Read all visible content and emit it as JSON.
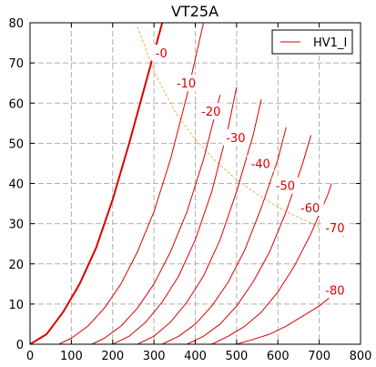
{
  "chart_data": {
    "type": "line",
    "title": "VT25A",
    "xlabel": "",
    "ylabel": "",
    "xlim": [
      0,
      800
    ],
    "ylim": [
      0,
      80
    ],
    "x_ticks": [
      "0",
      "100",
      "200",
      "300",
      "400",
      "500",
      "600",
      "700",
      "800"
    ],
    "y_ticks": [
      "0",
      "10",
      "20",
      "30",
      "40",
      "50",
      "60",
      "70",
      "80"
    ],
    "grid": true,
    "legend": {
      "position": "top-right",
      "entries": [
        "HV1_I"
      ]
    },
    "colors": {
      "curves": "#dd0000",
      "dissipation": "#f0b050",
      "axis": "#000000",
      "grid": "#b0b0b0"
    },
    "series": [
      {
        "label": "-0",
        "x": [
          0,
          40,
          80,
          120,
          160,
          200,
          240,
          280,
          320
        ],
        "y": [
          0,
          2.5,
          8,
          15,
          24,
          36,
          50,
          65,
          80
        ]
      },
      {
        "label": "-10",
        "x": [
          70,
          100,
          140,
          180,
          220,
          260,
          300,
          340,
          380,
          420
        ],
        "y": [
          0,
          1.5,
          4.5,
          9,
          15,
          23,
          33,
          46,
          62,
          80
        ]
      },
      {
        "label": "-20",
        "x": [
          150,
          180,
          220,
          260,
          300,
          340,
          380,
          420,
          460
        ],
        "y": [
          0,
          1.5,
          4.5,
          9,
          15,
          23,
          33,
          46,
          62
        ]
      },
      {
        "label": "-30",
        "x": [
          200,
          240,
          280,
          320,
          360,
          400,
          440,
          480,
          500
        ],
        "y": [
          0,
          2,
          5.5,
          10.5,
          17,
          26,
          38,
          54,
          64
        ]
      },
      {
        "label": "-40",
        "x": [
          260,
          300,
          340,
          380,
          420,
          460,
          500,
          540,
          560
        ],
        "y": [
          0,
          2,
          5.5,
          10.5,
          17,
          26,
          38,
          52,
          61
        ]
      },
      {
        "label": "-50",
        "x": [
          320,
          360,
          400,
          440,
          480,
          520,
          560,
          600,
          620
        ],
        "y": [
          0,
          2,
          5,
          9.5,
          15.5,
          23.5,
          34,
          46,
          54
        ]
      },
      {
        "label": "-60",
        "x": [
          380,
          420,
          460,
          500,
          540,
          580,
          620,
          660,
          680
        ],
        "y": [
          0,
          2,
          5,
          9.5,
          15.5,
          23,
          33,
          45,
          52
        ]
      },
      {
        "label": "-70",
        "x": [
          440,
          480,
          520,
          560,
          600,
          640,
          680,
          720,
          730
        ],
        "y": [
          0,
          2,
          4.5,
          8,
          13,
          19.5,
          27.5,
          37,
          40
        ]
      },
      {
        "label": "-80",
        "x": [
          500,
          540,
          580,
          620,
          660,
          700,
          730
        ],
        "y": [
          0,
          1.2,
          2.5,
          4.5,
          7,
          9.5,
          12
        ]
      }
    ],
    "dissipation_curve": {
      "x": [
        260,
        300,
        350,
        400,
        450,
        500,
        550,
        600,
        650,
        700,
        760
      ],
      "y": [
        79,
        68,
        58,
        51,
        45.5,
        41,
        37.3,
        34.1,
        31.5,
        29.3,
        26.8
      ]
    },
    "curve_labels": [
      {
        "text": "-0",
        "x": 318,
        "y": 72.5
      },
      {
        "text": "-10",
        "x": 378,
        "y": 65
      },
      {
        "text": "-20",
        "x": 438,
        "y": 58
      },
      {
        "text": "-30",
        "x": 498,
        "y": 51.5
      },
      {
        "text": "-40",
        "x": 558,
        "y": 45
      },
      {
        "text": "-50",
        "x": 618,
        "y": 39.5
      },
      {
        "text": "-60",
        "x": 678,
        "y": 34
      },
      {
        "text": "-70",
        "x": 738,
        "y": 29
      },
      {
        "text": "-80",
        "x": 738,
        "y": 13.5
      }
    ]
  }
}
